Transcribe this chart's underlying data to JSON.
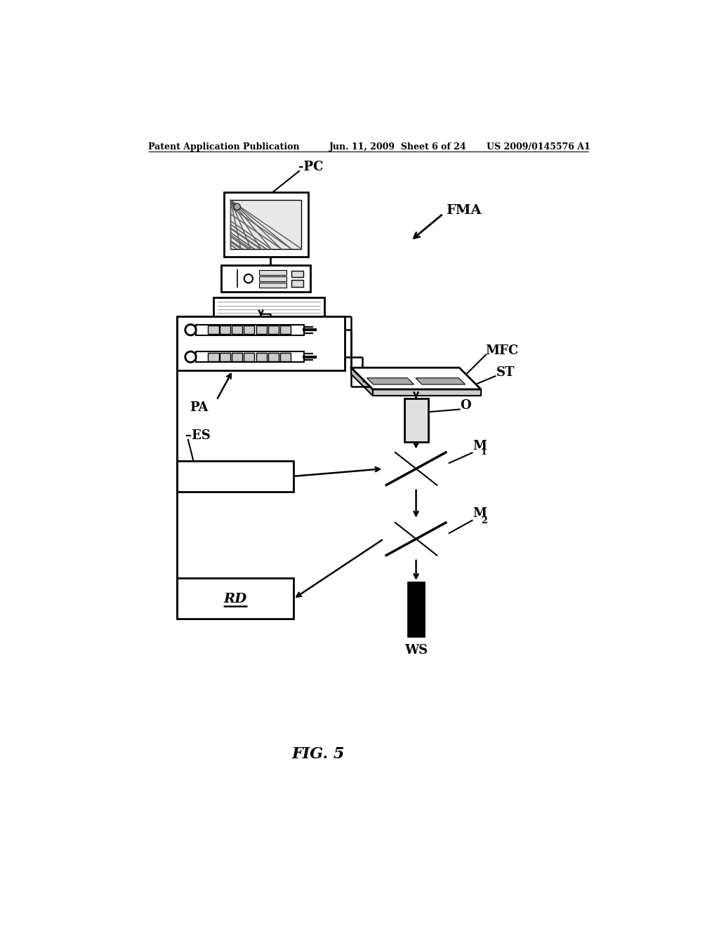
{
  "bg_color": "#ffffff",
  "header_left": "Patent Application Publication",
  "header_mid": "Jun. 11, 2009  Sheet 6 of 24",
  "header_right": "US 2009/0145576 A1",
  "fig_label": "FIG. 5",
  "line_color": "#000000",
  "line_lw": 1.5
}
